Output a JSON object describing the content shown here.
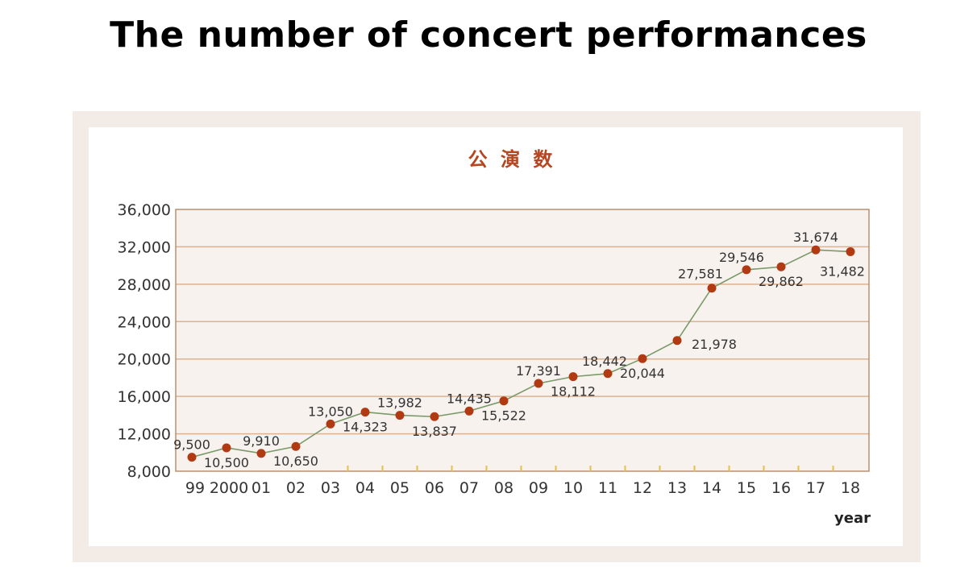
{
  "page": {
    "title": "The number of concert performances"
  },
  "chart_data": {
    "type": "line",
    "title": "公 演 数",
    "xlabel": "year",
    "ylabel": "",
    "ylim": [
      8000,
      36000
    ],
    "yticks": [
      "8,000",
      "12,000",
      "16,000",
      "20,000",
      "24,000",
      "28,000",
      "32,000",
      "36,000"
    ],
    "grid": true,
    "categories": [
      "99",
      "2000",
      "01",
      "02",
      "03",
      "04",
      "05",
      "06",
      "07",
      "08",
      "09",
      "10",
      "11",
      "12",
      "13",
      "14",
      "15",
      "16",
      "17",
      "18"
    ],
    "values": [
      9500,
      10500,
      9910,
      10650,
      13050,
      14323,
      13982,
      13837,
      14435,
      15522,
      17391,
      18112,
      18442,
      20044,
      21978,
      27581,
      29546,
      29862,
      31674,
      31482
    ],
    "value_labels": [
      "9,500",
      "10,500",
      "9,910",
      "10,650",
      "13,050",
      "14,323",
      "13,982",
      "13,837",
      "14,435",
      "15,522",
      "17,391",
      "18,112",
      "18,442",
      "20,044",
      "21,978",
      "27,581",
      "29,546",
      "29,862",
      "31,674",
      "31,482"
    ],
    "colors": {
      "line": "#7a9a6a",
      "marker": "#b23a12",
      "plot_background": "#f8f2ef",
      "grid": "#dcb290",
      "axis": "#b89070",
      "x_minor_tick": "#e3c24a"
    }
  }
}
